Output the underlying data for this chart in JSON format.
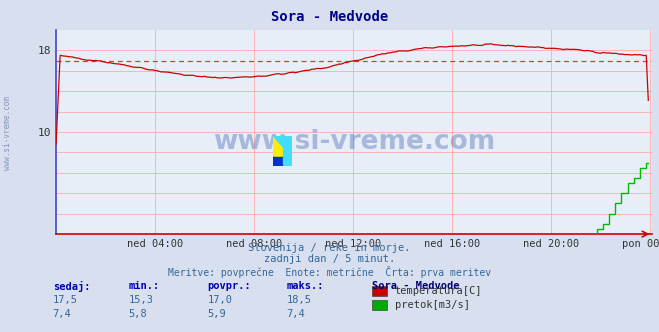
{
  "title": "Sora - Medvode",
  "bg_color": "#d8e0f0",
  "plot_bg_color": "#e8eef8",
  "grid_color": "#ffaaaa",
  "xlabel_ticks": [
    "ned 04:00",
    "ned 08:00",
    "ned 12:00",
    "ned 16:00",
    "ned 20:00",
    "pon 00:00"
  ],
  "tick_x_positions": [
    48,
    96,
    144,
    192,
    240,
    288
  ],
  "ytick_vals": [
    0,
    2,
    4,
    6,
    8,
    10,
    12,
    14,
    16,
    18
  ],
  "ytick_labels": [
    "",
    "",
    "",
    "",
    "",
    "10",
    "",
    "",
    "",
    "18"
  ],
  "ylim": [
    0,
    20
  ],
  "xlim": [
    0,
    289
  ],
  "subtitle1": "Slovenija / reke in morje.",
  "subtitle2": "zadnji dan / 5 minut.",
  "subtitle3": "Meritve: povprečne  Enote: metrične  Črta: prva meritev",
  "watermark": "www.si-vreme.com",
  "legend_title": "Sora - Medvode",
  "legend_entries": [
    "temperatura[C]",
    "pretok[m3/s]"
  ],
  "legend_colors": [
    "#cc0000",
    "#00aa00"
  ],
  "stats_headers": [
    "sedaj:",
    "min.:",
    "povpr.:",
    "maks.:"
  ],
  "stats_temp": [
    "17,5",
    "15,3",
    "17,0",
    "18,5"
  ],
  "stats_flow": [
    "7,4",
    "5,8",
    "5,9",
    "7,4"
  ],
  "temp_avg_line": 17.0,
  "flow_color": "#00bb00",
  "temp_color": "#cc0000",
  "temp_avg_color": "#ee3333",
  "sidebar_text": "www.si-vreme.com",
  "left_spine_color": "#4444cc",
  "bottom_spine_color": "#cc0000",
  "num_points": 288,
  "temp_keypoints": [
    [
      0,
      17.5
    ],
    [
      8,
      17.3
    ],
    [
      20,
      17.0
    ],
    [
      35,
      16.5
    ],
    [
      55,
      15.8
    ],
    [
      70,
      15.4
    ],
    [
      85,
      15.3
    ],
    [
      100,
      15.5
    ],
    [
      115,
      15.8
    ],
    [
      130,
      16.3
    ],
    [
      145,
      17.0
    ],
    [
      160,
      17.7
    ],
    [
      175,
      18.1
    ],
    [
      190,
      18.4
    ],
    [
      205,
      18.5
    ],
    [
      215,
      18.5
    ],
    [
      225,
      18.4
    ],
    [
      240,
      18.2
    ],
    [
      255,
      18.0
    ],
    [
      265,
      17.8
    ],
    [
      275,
      17.6
    ],
    [
      285,
      17.5
    ],
    [
      288,
      17.5
    ]
  ],
  "flow_start": 258,
  "flow_steps": [
    [
      258,
      0.0
    ],
    [
      262,
      0.5
    ],
    [
      265,
      1.0
    ],
    [
      268,
      2.0
    ],
    [
      271,
      3.0
    ],
    [
      274,
      4.0
    ],
    [
      277,
      5.0
    ],
    [
      280,
      5.5
    ],
    [
      283,
      6.5
    ],
    [
      286,
      7.0
    ],
    [
      288,
      7.4
    ]
  ]
}
